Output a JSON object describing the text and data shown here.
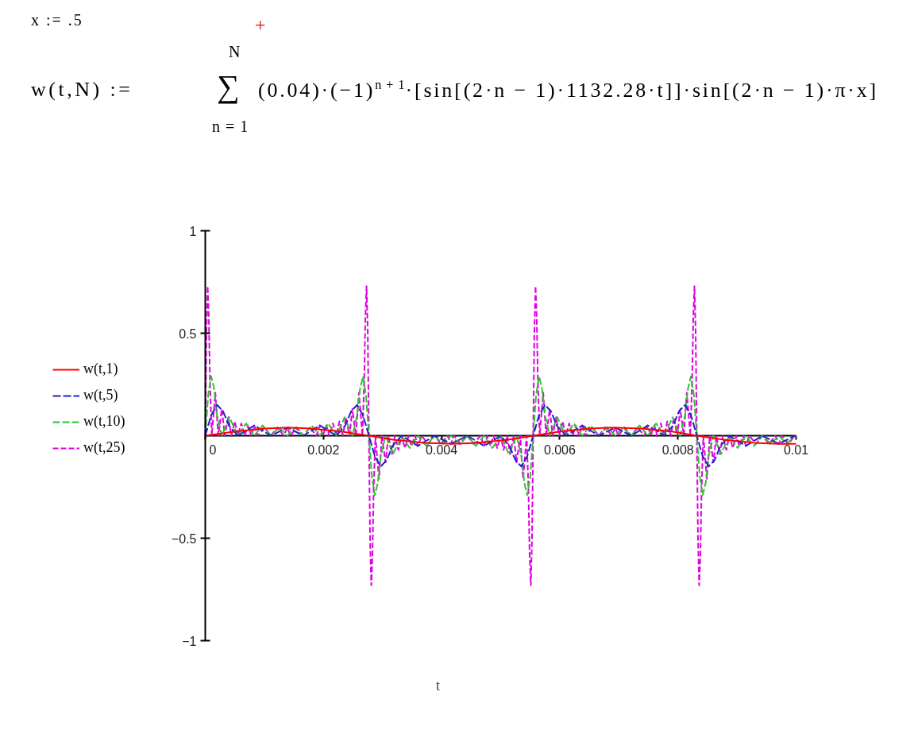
{
  "chart_data": {
    "type": "line",
    "xlabel": "t",
    "annotations": [
      "x := .5",
      "+",
      "N",
      "w(t,N) :=",
      "∑",
      "(0.04)·(−1)$^{n + 1}$·[sin[(2·n − 1)·1132.28·t]]·sin[(2·n − 1)·π·x]",
      "n = 1"
    ],
    "xlim": [
      0,
      0.01
    ],
    "ylim": [
      -1,
      1
    ],
    "xticks": [
      0,
      0.002,
      0.004,
      0.006,
      0.008,
      0.01
    ],
    "yticks": [
      {
        "value": -1,
        "label": "−1"
      },
      {
        "value": -0.5,
        "label": "−0.5"
      },
      0.5,
      1
    ],
    "legend": "left",
    "series": [
      {
        "name": "w(t,1)",
        "color": "#ff0000",
        "line_style": "solid",
        "x": [
          0,
          0.0005,
          0.001,
          0.0014,
          0.0018,
          0.0023,
          0.00277,
          0.0032,
          0.0037,
          0.0042,
          0.0046,
          0.0051,
          0.00555,
          0.006,
          0.0065,
          0.0069,
          0.0074,
          0.0079,
          0.00832,
          0.0088,
          0.0093,
          0.0097,
          0.01
        ],
        "values": [
          0,
          0.02,
          0.035,
          0.04,
          0.035,
          0.02,
          0,
          -0.02,
          -0.035,
          -0.04,
          -0.035,
          -0.02,
          0,
          0.02,
          0.035,
          0.04,
          0.035,
          0.02,
          0,
          -0.02,
          -0.035,
          -0.04,
          -0.04
        ]
      },
      {
        "name": "w(t,5)",
        "color": "#2020c8",
        "line_style": "dashed",
        "x": [
          0,
          0.0001,
          0.0002,
          0.0003,
          0.0004,
          0.00055,
          0.00083,
          0.00111,
          0.00139,
          0.00166,
          0.00194,
          0.00222,
          0.00237,
          0.00247,
          0.00257,
          0.00267,
          0.00277,
          0.00287,
          0.00297,
          0.00307,
          0.00317,
          0.00332,
          0.0036,
          0.00388,
          0.00416,
          0.00444,
          0.00472,
          0.005,
          0.00515,
          0.00525,
          0.00535,
          0.00545,
          0.00555,
          0.00565,
          0.00575,
          0.00585,
          0.00595,
          0.0061,
          0.00638,
          0.00666,
          0.00694,
          0.00721,
          0.00749,
          0.00777,
          0.00792,
          0.00802,
          0.00812,
          0.00822,
          0.00832,
          0.00842,
          0.00852,
          0.00862,
          0.00872,
          0.00887,
          0.00915,
          0.00943,
          0.00971,
          0.00998
        ],
        "values": [
          0,
          0.1,
          0.15,
          0.12,
          0.05,
          0,
          0.05,
          0,
          0.04,
          0,
          0.05,
          0,
          0.05,
          0.12,
          0.15,
          0.1,
          0,
          -0.1,
          -0.15,
          -0.12,
          -0.05,
          0,
          -0.05,
          0,
          -0.04,
          0,
          -0.05,
          0,
          -0.05,
          -0.12,
          -0.15,
          -0.1,
          0,
          0.1,
          0.15,
          0.12,
          0.05,
          0,
          0.05,
          0,
          0.04,
          0,
          0.05,
          0,
          0.05,
          0.12,
          0.15,
          0.1,
          0,
          -0.1,
          -0.15,
          -0.12,
          -0.05,
          0,
          -0.05,
          0,
          -0.04,
          0
        ]
      },
      {
        "name": "w(t,10)",
        "color": "#33c033",
        "line_style": "dashed",
        "x": [
          0,
          5e-05,
          0.0001,
          0.00015,
          0.0002,
          0.00028,
          0.00041,
          0.00055,
          0.00069,
          0.00083,
          0.00097,
          0.00111,
          0.00125,
          0.00139,
          0.00152,
          0.00166,
          0.0018,
          0.00194,
          0.00208,
          0.00222,
          0.00236,
          0.00249,
          0.00257,
          0.00262,
          0.00267,
          0.00272,
          0.00277,
          0.00282,
          0.00287,
          0.00292,
          0.00297,
          0.00305,
          0.00318,
          0.00332,
          0.00346,
          0.0036,
          0.00374,
          0.00388,
          0.00402,
          0.00416,
          0.0043,
          0.00444,
          0.00458,
          0.00472,
          0.00486,
          0.005,
          0.00514,
          0.00527,
          0.00535,
          0.0054,
          0.00545,
          0.0055,
          0.00555,
          0.0056,
          0.00565,
          0.0057,
          0.00575,
          0.00583,
          0.00596,
          0.0061,
          0.00624,
          0.00638,
          0.00652,
          0.00666,
          0.0068,
          0.00694,
          0.00707,
          0.00721,
          0.00735,
          0.00749,
          0.00763,
          0.00777,
          0.00791,
          0.00804,
          0.00812,
          0.00817,
          0.00822,
          0.00827,
          0.00832,
          0.00837,
          0.00842,
          0.00847,
          0.00852,
          0.0086,
          0.00873,
          0.00887,
          0.00901,
          0.00915,
          0.00929,
          0.00943,
          0.00957,
          0.00971,
          0.00984,
          0.00998
        ],
        "values": [
          0,
          0.2,
          0.29,
          0.23,
          0.1,
          0,
          0.09,
          0,
          0.06,
          0,
          0.05,
          0,
          0.04,
          0,
          0.04,
          0,
          0.05,
          0,
          0.06,
          0,
          0.09,
          0,
          0.1,
          0.23,
          0.29,
          0.2,
          0,
          -0.2,
          -0.29,
          -0.23,
          -0.1,
          0,
          -0.09,
          0,
          -0.06,
          0,
          -0.05,
          0,
          -0.04,
          0,
          -0.04,
          0,
          -0.05,
          0,
          -0.06,
          0,
          -0.09,
          0,
          -0.1,
          -0.23,
          -0.29,
          -0.2,
          0,
          0.2,
          0.29,
          0.23,
          0.1,
          0,
          0.09,
          0,
          0.06,
          0,
          0.05,
          0,
          0.04,
          0,
          0.04,
          0,
          0.05,
          0,
          0.06,
          0,
          0.09,
          0,
          0.1,
          0.23,
          0.29,
          0.2,
          0,
          -0.2,
          -0.29,
          -0.23,
          -0.1,
          0,
          -0.09,
          0,
          -0.06,
          0,
          -0.05,
          0,
          -0.04,
          0,
          -0.04,
          0
        ]
      },
      {
        "name": "w(t,25)",
        "color": "#e000e0",
        "line_style": "dashed",
        "x": [
          0,
          2e-05,
          4e-05,
          6e-05,
          8e-05,
          0.00011,
          0.00017,
          0.00022,
          0.00028,
          0.00033,
          0.00039,
          0.00044,
          0.0005,
          0.00055,
          0.00061,
          0.00067,
          0.00072,
          0.00078,
          0.00083,
          0.00089,
          0.001,
          0.00111,
          0.00122,
          0.00133,
          0.00139,
          0.00144,
          0.00155,
          0.00166,
          0.00177,
          0.00188,
          0.00194,
          0.00199,
          0.00205,
          0.0021,
          0.00216,
          0.00222,
          0.00227,
          0.00233,
          0.00238,
          0.00244,
          0.00249,
          0.00255,
          0.0026,
          0.00266,
          0.00269,
          0.00271,
          0.00273,
          0.00275,
          0.00277,
          0.00279,
          0.00281,
          0.00283,
          0.00285,
          0.00288,
          0.00294,
          0.00299,
          0.00305,
          0.0031,
          0.00316,
          0.00321,
          0.00327,
          0.00332,
          0.00338,
          0.00344,
          0.00349,
          0.00355,
          0.0036,
          0.00366,
          0.00377,
          0.00388,
          0.00399,
          0.0041,
          0.00416,
          0.00421,
          0.00432,
          0.00443,
          0.00454,
          0.00466,
          0.00472,
          0.00477,
          0.00483,
          0.00488,
          0.00494,
          0.005,
          0.00505,
          0.00511,
          0.00516,
          0.00522,
          0.00527,
          0.00533,
          0.00538,
          0.00544,
          0.00547,
          0.00549,
          0.00551,
          0.00553,
          0.00555,
          0.00557,
          0.00559,
          0.00561,
          0.00563,
          0.00566,
          0.00572,
          0.00577,
          0.00583,
          0.00588,
          0.00594,
          0.00599,
          0.00605,
          0.0061,
          0.00616,
          0.00622,
          0.00627,
          0.00633,
          0.00638,
          0.00644,
          0.00655,
          0.00666,
          0.00677,
          0.00688,
          0.00694,
          0.00699,
          0.0071,
          0.00721,
          0.00732,
          0.00743,
          0.00749,
          0.00754,
          0.0076,
          0.00765,
          0.00771,
          0.00777,
          0.00782,
          0.00788,
          0.00793,
          0.00799,
          0.00804,
          0.0081,
          0.00815,
          0.00821,
          0.00824,
          0.00826,
          0.00828,
          0.0083,
          0.00832,
          0.00834,
          0.00836,
          0.00838,
          0.0084,
          0.00843,
          0.00849,
          0.00854,
          0.0086,
          0.00865,
          0.00871,
          0.00876,
          0.00882,
          0.00887,
          0.00893,
          0.00899,
          0.00904,
          0.0091,
          0.00915,
          0.00921,
          0.00932,
          0.00943,
          0.00954,
          0.00965,
          0.00971,
          0.00976,
          0.00987,
          0.00998,
          0.01
        ],
        "values": [
          0,
          0.51,
          0.73,
          0.58,
          0.26,
          0,
          0.21,
          0,
          0.13,
          0,
          0.09,
          0,
          0.07,
          0,
          0.06,
          0,
          0.05,
          0,
          0.05,
          0,
          0.04,
          0,
          0.04,
          0,
          0.04,
          0,
          0.04,
          0,
          0.04,
          0,
          0.05,
          0,
          0.05,
          0,
          0.06,
          0,
          0.07,
          0,
          0.09,
          0,
          0.13,
          0,
          0.21,
          0,
          0.26,
          0.58,
          0.73,
          0.51,
          0,
          -0.51,
          -0.73,
          -0.58,
          -0.26,
          0,
          -0.21,
          0,
          -0.13,
          0,
          -0.09,
          0,
          -0.07,
          0,
          -0.06,
          0,
          -0.05,
          0,
          -0.05,
          0,
          -0.04,
          0,
          -0.04,
          0,
          -0.04,
          0,
          -0.04,
          0,
          -0.04,
          0,
          -0.05,
          0,
          -0.05,
          0,
          -0.06,
          0,
          -0.07,
          0,
          -0.09,
          0,
          -0.13,
          0,
          -0.21,
          0,
          -0.26,
          -0.58,
          -0.73,
          -0.51,
          0,
          0.51,
          0.73,
          0.58,
          0.26,
          0,
          0.21,
          0,
          0.13,
          0,
          0.09,
          0,
          0.07,
          0,
          0.06,
          0,
          0.05,
          0,
          0.05,
          0,
          0.04,
          0,
          0.04,
          0,
          0.04,
          0,
          0.04,
          0,
          0.04,
          0,
          0.05,
          0,
          0.05,
          0,
          0.06,
          0,
          0.07,
          0,
          0.09,
          0,
          0.13,
          0,
          0.21,
          0,
          0.26,
          0.58,
          0.73,
          0.51,
          0,
          -0.51,
          -0.73,
          -0.58,
          -0.26,
          0,
          -0.21,
          0,
          -0.13,
          0,
          -0.09,
          0,
          -0.07,
          0,
          -0.06,
          0,
          -0.05,
          0,
          -0.05,
          0,
          -0.04,
          0,
          -0.04,
          0,
          -0.04,
          0,
          -0.04,
          0,
          -0.01
        ]
      }
    ]
  }
}
